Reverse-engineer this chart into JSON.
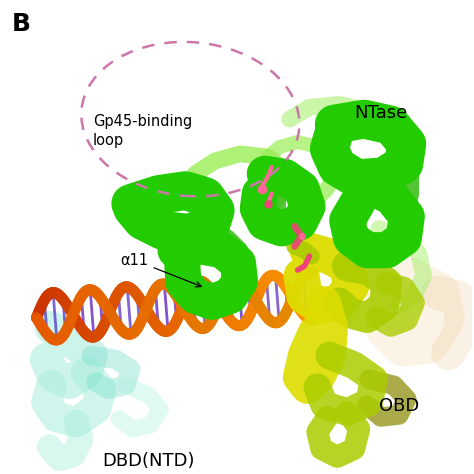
{
  "title_label": "B",
  "label_NTase": "NTase",
  "label_OBD": "OBD",
  "label_DBD": "DBD(NTD)",
  "label_alpha11": "α11",
  "label_gp45": "Gp45-binding\nloop",
  "bg_color": "#ffffff",
  "dashed_circle_color": "#cc77aa",
  "label_fontsize": 13,
  "panel_label_fontsize": 18,
  "annotation_fontsize": 10.5,
  "colors": {
    "green_bright": "#22cc00",
    "green_dark": "#119900",
    "green_medium": "#33bb11",
    "light_green": "#99ee55",
    "yellow_green": "#aacc00",
    "yellow_bright": "#dddd00",
    "yellow_dark": "#888800",
    "olive_dark": "#666600",
    "orange_bright": "#ff8800",
    "orange_medium": "#ee6600",
    "orange_dark": "#cc4400",
    "red_orange": "#cc2200",
    "red_dark": "#aa1100",
    "purple": "#6644aa",
    "blue_purple": "#4433cc",
    "blue": "#2255bb",
    "cyan_light": "#aaeedd",
    "cyan_medium": "#77ddcc",
    "pink_bright": "#ff6699",
    "pink_medium": "#ee4477",
    "pink_light": "#ffaacc",
    "tan_light": "#f5ddb8",
    "tan_medium": "#e8c890"
  }
}
